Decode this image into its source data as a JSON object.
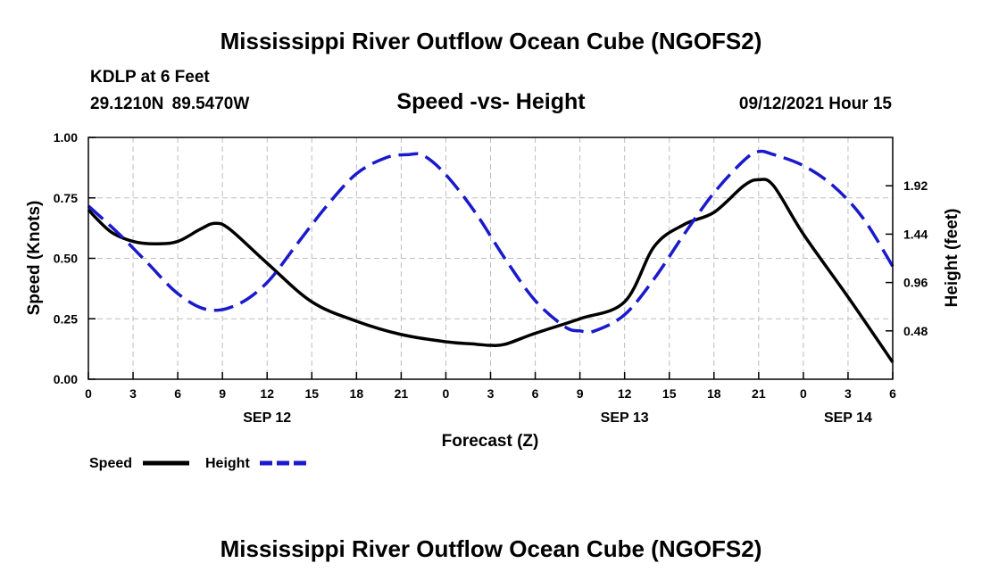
{
  "header": {
    "title": "Mississippi River Outflow Ocean Cube (NGOFS2)",
    "station": "KDLP at 6 Feet",
    "coordinates": "29.1210N  89.5470W",
    "subtitle": "Speed -vs- Height",
    "datetime": "09/12/2021 Hour 15"
  },
  "footer": {
    "title": "Mississippi River Outflow Ocean Cube (NGOFS2)"
  },
  "chart_data": {
    "type": "line",
    "xlabel": "Forecast (Z)",
    "ylabel_left": "Speed (Knots)",
    "ylabel_right": "Height (feet)",
    "x_range_hours": [
      0,
      54
    ],
    "x_tick_step_hours": 3,
    "x_tick_labels": [
      "0",
      "3",
      "6",
      "9",
      "12",
      "15",
      "18",
      "21",
      "0",
      "3",
      "6",
      "9",
      "12",
      "15",
      "18",
      "21",
      "0",
      "3",
      "6"
    ],
    "date_labels": [
      {
        "hour": 12,
        "label": "SEP 12"
      },
      {
        "hour": 36,
        "label": "SEP 13"
      },
      {
        "hour": 51,
        "label": "SEP 14"
      }
    ],
    "y_left": {
      "range": [
        0,
        1.0
      ],
      "ticks": [
        0,
        0.25,
        0.5,
        0.75,
        1.0
      ],
      "tick_labels": [
        "0.00",
        "0.25",
        "0.50",
        "0.75",
        "1.00"
      ]
    },
    "y_right": {
      "range": [
        0,
        2.4
      ],
      "ticks": [
        0.48,
        0.96,
        1.44,
        1.92
      ],
      "tick_labels": [
        "0.48",
        "0.96",
        "1.44",
        "1.92"
      ]
    },
    "grid": true,
    "series": [
      {
        "name": "Speed",
        "axis": "left",
        "color": "#000000",
        "style": "solid",
        "x": [
          0,
          1.5,
          3,
          4.5,
          6,
          7.5,
          8.5,
          9.5,
          12,
          15,
          18,
          21,
          24,
          26,
          27,
          28,
          30,
          33,
          36,
          38,
          40,
          42,
          44,
          45,
          46,
          48,
          51,
          54
        ],
        "values": [
          0.7,
          0.61,
          0.57,
          0.56,
          0.57,
          0.62,
          0.645,
          0.62,
          0.48,
          0.32,
          0.24,
          0.185,
          0.155,
          0.145,
          0.14,
          0.145,
          0.19,
          0.25,
          0.32,
          0.55,
          0.64,
          0.69,
          0.8,
          0.825,
          0.8,
          0.6,
          0.34,
          0.07
        ]
      },
      {
        "name": "Height",
        "axis": "right",
        "color": "#1a1acc",
        "style": "dashed",
        "x": [
          0,
          2,
          4,
          6,
          8,
          10,
          12,
          14,
          16,
          18,
          20,
          21.5,
          22.5,
          24,
          26,
          28,
          30,
          32,
          33,
          34,
          36,
          38,
          40,
          42,
          44,
          45,
          46,
          48,
          50,
          52,
          54
        ],
        "values": [
          1.72,
          1.45,
          1.15,
          0.85,
          0.69,
          0.74,
          0.96,
          1.34,
          1.72,
          2.04,
          2.2,
          2.23,
          2.22,
          2.03,
          1.65,
          1.19,
          0.78,
          0.52,
          0.48,
          0.48,
          0.64,
          1.0,
          1.44,
          1.85,
          2.17,
          2.26,
          2.23,
          2.12,
          1.92,
          1.6,
          1.12
        ]
      }
    ]
  },
  "legend": {
    "speed_label": "Speed",
    "height_label": "Height"
  }
}
